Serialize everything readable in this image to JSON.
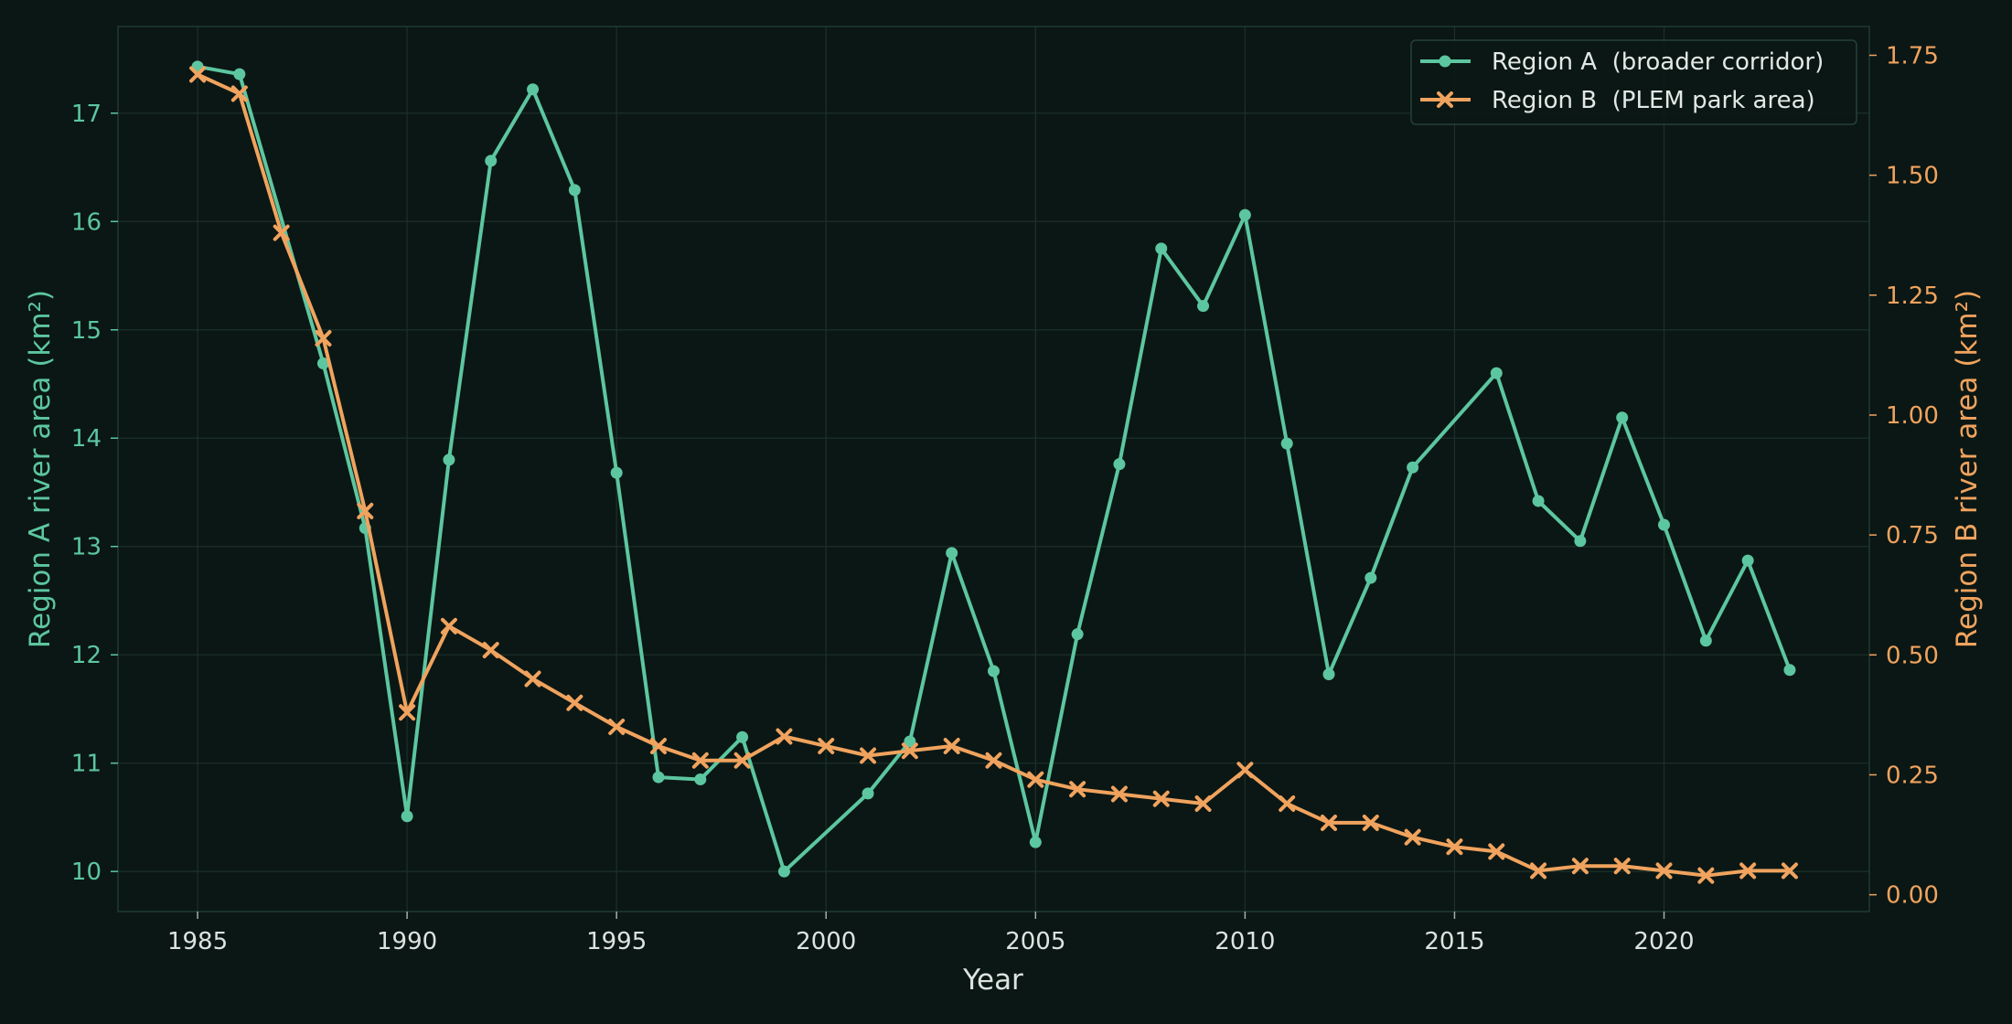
{
  "chart_data": {
    "type": "line",
    "xlabel": "Year",
    "ylabel_left": "Region A river area (km²)",
    "ylabel_right": "Region B river area (km²)",
    "x_ticks": [
      1985,
      1990,
      1995,
      2000,
      2005,
      2010,
      2015,
      2020
    ],
    "y_left_ticks": [
      10,
      11,
      12,
      13,
      14,
      15,
      16,
      17
    ],
    "y_right_ticks": [
      "0.00",
      "0.25",
      "0.50",
      "0.75",
      "1.00",
      "1.25",
      "1.50",
      "1.75"
    ],
    "xlim": [
      1983.1,
      2024.9
    ],
    "ylim_left": [
      9.63,
      17.8
    ],
    "ylim_right": [
      -0.035,
      1.81
    ],
    "grid": true,
    "legend_position": "top-right",
    "colors": {
      "region_a": "#5cc6a0",
      "region_b": "#f0a35e",
      "background": "#0b1714",
      "grid": "#1c302a"
    },
    "series": [
      {
        "name": "Region A  (broader corridor)",
        "axis": "left",
        "marker": "circle",
        "x": [
          1985,
          1986,
          1988,
          1989,
          1990,
          1991,
          1992,
          1993,
          1994,
          1995,
          1996,
          1997,
          1998,
          1999,
          2001,
          2002,
          2003,
          2004,
          2005,
          2006,
          2007,
          2008,
          2009,
          2010,
          2011,
          2012,
          2013,
          2014,
          2016,
          2017,
          2018,
          2019,
          2020,
          2021,
          2022,
          2023
        ],
        "values": [
          17.43,
          17.36,
          14.69,
          13.17,
          10.51,
          13.8,
          16.56,
          17.22,
          16.29,
          13.68,
          10.87,
          10.85,
          11.24,
          10.0,
          10.72,
          11.2,
          12.94,
          11.85,
          10.27,
          12.19,
          13.76,
          15.75,
          15.22,
          16.06,
          13.95,
          11.82,
          12.71,
          13.73,
          14.6,
          13.42,
          13.05,
          14.19,
          13.2,
          12.13,
          12.87,
          11.86
        ]
      },
      {
        "name": "Region B  (PLEM park area)",
        "axis": "right",
        "marker": "x",
        "x": [
          1985,
          1986,
          1987,
          1988,
          1989,
          1990,
          1991,
          1992,
          1993,
          1994,
          1995,
          1996,
          1997,
          1998,
          1999,
          2000,
          2001,
          2002,
          2003,
          2004,
          2005,
          2006,
          2007,
          2008,
          2009,
          2010,
          2011,
          2012,
          2013,
          2014,
          2015,
          2016,
          2017,
          2018,
          2019,
          2020,
          2021,
          2022,
          2023
        ],
        "values": [
          1.71,
          1.67,
          1.38,
          1.16,
          0.8,
          0.38,
          0.56,
          0.51,
          0.45,
          0.4,
          0.35,
          0.31,
          0.28,
          0.28,
          0.33,
          0.31,
          0.29,
          0.3,
          0.31,
          0.28,
          0.24,
          0.22,
          0.21,
          0.2,
          0.19,
          0.26,
          0.19,
          0.15,
          0.15,
          0.12,
          0.1,
          0.09,
          0.05,
          0.06,
          0.06,
          0.05,
          0.04,
          0.05,
          0.05
        ]
      }
    ]
  }
}
